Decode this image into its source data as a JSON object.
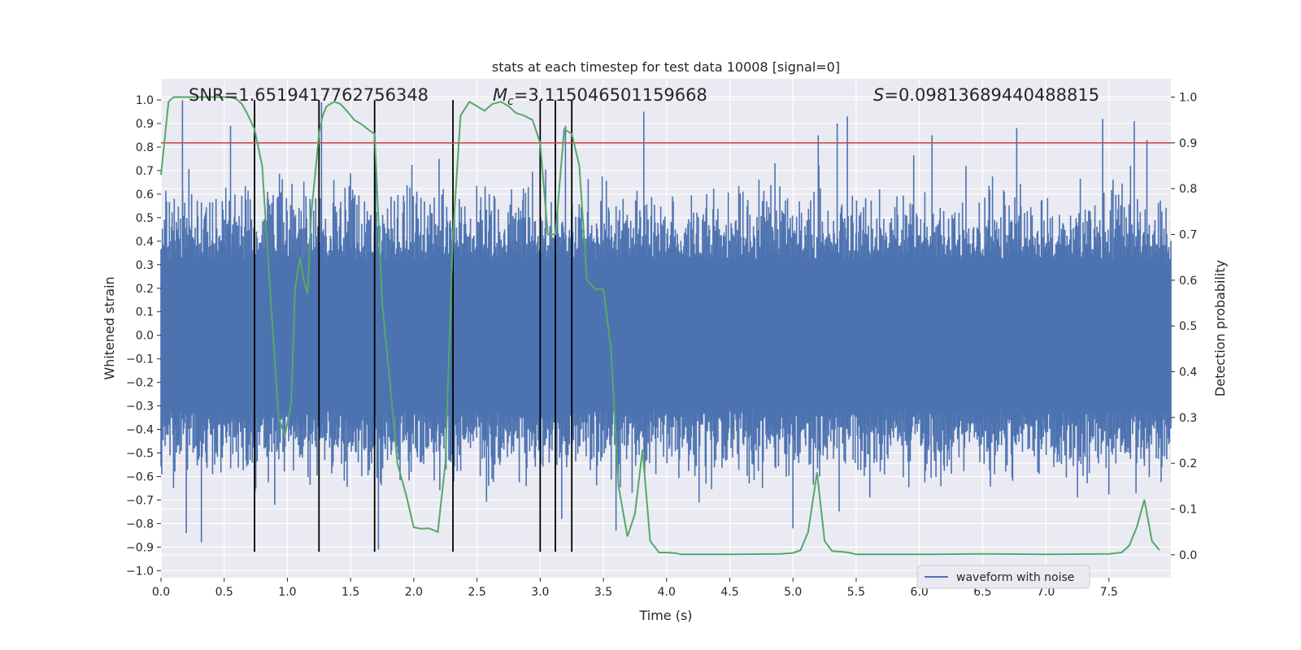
{
  "chart_data": {
    "type": "line",
    "title": "stats at each timestep for test data 10008 [signal=0]",
    "xlabel": "Time (s)",
    "ylabel_left": "Whitened strain",
    "ylabel_right": "Detection probability",
    "xlim": [
      0.0,
      7.99
    ],
    "ylim_left": [
      -1.03,
      1.09
    ],
    "ylim_right": [
      -0.05,
      1.04
    ],
    "x_ticks": [
      "0.0",
      "0.5",
      "1.0",
      "1.5",
      "2.0",
      "2.5",
      "3.0",
      "3.5",
      "4.0",
      "4.5",
      "5.0",
      "5.5",
      "6.0",
      "6.5",
      "7.0",
      "7.5"
    ],
    "y_left_ticks": [
      "-1.0",
      "-0.9",
      "-0.8",
      "-0.7",
      "-0.6",
      "-0.5",
      "-0.4",
      "-0.3",
      "-0.2",
      "-0.1",
      "0.0",
      "0.1",
      "0.2",
      "0.3",
      "0.4",
      "0.5",
      "0.6",
      "0.7",
      "0.8",
      "0.9",
      "1.0"
    ],
    "y_right_ticks": [
      "0.0",
      "0.1",
      "0.2",
      "0.3",
      "0.4",
      "0.5",
      "0.6",
      "0.7",
      "0.8",
      "0.9",
      "1.0"
    ],
    "grid": true,
    "legend": {
      "location": "lower-right",
      "entries": [
        "waveform with noise"
      ]
    },
    "annotations": {
      "snr": "SNR=1.6519417762756348",
      "mc_symbol": "M",
      "mc_sub": "c",
      "mc_value": "=3.115046501159668",
      "s_symbol": "S",
      "s_value": "=0.09813689440488815"
    },
    "threshold": {
      "axis": "right",
      "value": 0.9,
      "color": "#c44e52"
    },
    "vertical_lines": [
      0.74,
      1.25,
      1.69,
      2.31,
      3.0,
      3.12,
      3.25
    ],
    "vline_range_left": [
      -0.92,
      1.0
    ],
    "colors": {
      "waveform": "#4c72b0",
      "probability": "#55a868",
      "threshold": "#c44e52",
      "vlines": "#000000",
      "background": "#eaeaf2"
    },
    "series": [
      {
        "name": "waveform with noise",
        "axis": "left",
        "kind": "noise-band",
        "x_range": [
          0.0,
          7.99
        ],
        "typical_range": [
          -0.5,
          0.5
        ],
        "extremes": [
          [
            0.17,
            1.0
          ],
          [
            0.2,
            -0.84
          ],
          [
            0.32,
            -0.88
          ],
          [
            0.55,
            0.89
          ],
          [
            0.75,
            -0.65
          ],
          [
            0.9,
            -0.72
          ],
          [
            1.27,
            0.99
          ],
          [
            1.72,
            -0.91
          ],
          [
            2.2,
            0.75
          ],
          [
            3.17,
            -0.78
          ],
          [
            3.2,
            0.89
          ],
          [
            3.6,
            -0.83
          ],
          [
            3.82,
            0.95
          ],
          [
            5.0,
            -0.82
          ],
          [
            5.2,
            0.85
          ],
          [
            5.35,
            0.9
          ],
          [
            5.43,
            0.93
          ],
          [
            6.1,
            0.85
          ],
          [
            6.77,
            0.88
          ],
          [
            7.45,
            0.92
          ],
          [
            7.7,
            0.91
          ],
          [
            7.8,
            0.83
          ]
        ]
      },
      {
        "name": "",
        "axis": "right",
        "kind": "line",
        "x": [
          0.0,
          0.06,
          0.1,
          0.15,
          0.2,
          0.3,
          0.4,
          0.5,
          0.55,
          0.6,
          0.64,
          0.68,
          0.74,
          0.8,
          0.87,
          0.93,
          0.98,
          1.03,
          1.06,
          1.1,
          1.13,
          1.16,
          1.19,
          1.22,
          1.25,
          1.28,
          1.31,
          1.37,
          1.42,
          1.47,
          1.53,
          1.59,
          1.66,
          1.69,
          1.75,
          1.81,
          1.87,
          1.94,
          2.0,
          2.06,
          2.12,
          2.19,
          2.25,
          2.31,
          2.37,
          2.44,
          2.5,
          2.56,
          2.62,
          2.69,
          2.75,
          2.81,
          2.87,
          2.94,
          3.0,
          3.06,
          3.12,
          3.19,
          3.25,
          3.31,
          3.37,
          3.44,
          3.5,
          3.56,
          3.62,
          3.69,
          3.75,
          3.81,
          3.87,
          3.94,
          4.0,
          4.06,
          4.12,
          4.5,
          4.9,
          5.0,
          5.06,
          5.12,
          5.19,
          5.25,
          5.31,
          5.37,
          5.44,
          5.5,
          6.0,
          6.5,
          7.0,
          7.5,
          7.6,
          7.66,
          7.72,
          7.78,
          7.84,
          7.9
        ],
        "y": [
          0.83,
          0.99,
          1.0,
          1.0,
          1.0,
          1.0,
          1.0,
          1.0,
          1.0,
          0.995,
          0.985,
          0.965,
          0.93,
          0.85,
          0.55,
          0.3,
          0.26,
          0.33,
          0.58,
          0.65,
          0.6,
          0.57,
          0.75,
          0.83,
          0.92,
          0.96,
          0.98,
          0.99,
          0.985,
          0.97,
          0.95,
          0.94,
          0.925,
          0.92,
          0.55,
          0.38,
          0.2,
          0.13,
          0.06,
          0.057,
          0.058,
          0.05,
          0.2,
          0.7,
          0.96,
          0.99,
          0.98,
          0.97,
          0.985,
          0.99,
          0.98,
          0.965,
          0.96,
          0.95,
          0.9,
          0.7,
          0.7,
          0.93,
          0.92,
          0.85,
          0.6,
          0.58,
          0.58,
          0.45,
          0.15,
          0.04,
          0.09,
          0.23,
          0.03,
          0.005,
          0.005,
          0.004,
          0.001,
          0.001,
          0.002,
          0.004,
          0.01,
          0.05,
          0.18,
          0.03,
          0.008,
          0.007,
          0.005,
          0.001,
          0.001,
          0.002,
          0.001,
          0.002,
          0.005,
          0.02,
          0.06,
          0.12,
          0.03,
          0.01
        ],
        "color": "#55a868"
      }
    ]
  }
}
